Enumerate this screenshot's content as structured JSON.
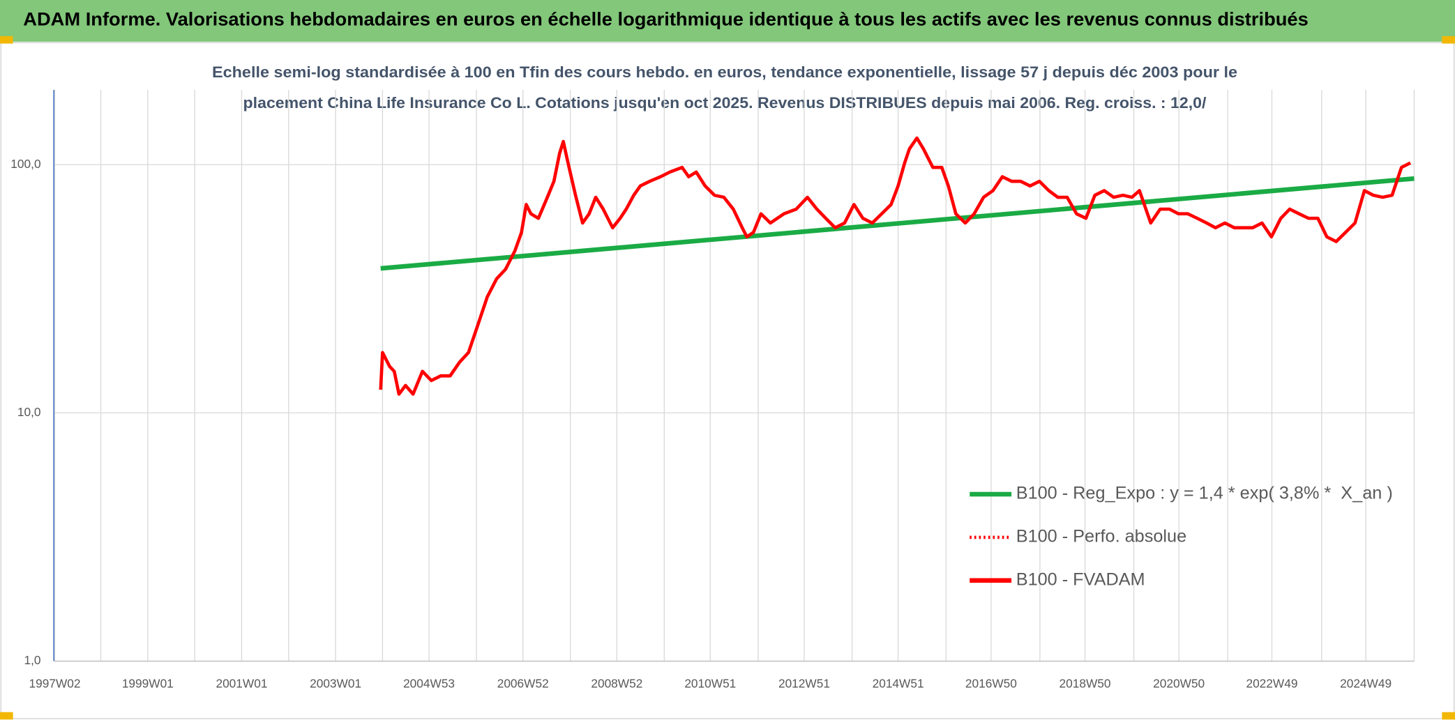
{
  "chart_data": {
    "type": "line",
    "title": "ADAM Informe. Valorisations hebdomadaires en euros en échelle logarithmique identique à tous les actifs avec les revenus connus distribués",
    "subtitle": [
      "Echelle semi-log standardisée à 100 en Tfin des cours hebdo. en euros, tendance exponentielle, lissage 57 j depuis déc 2003 pour le",
      "placement China Life Insurance Co L. Cotations jusqu'en oct 2025. Revenus DISTRIBUES depuis mai 2006. Reg. croiss. : 12,0/"
    ],
    "log_scale": true,
    "grid": true,
    "legend": "right",
    "xlim": [
      1997,
      2025.97
    ],
    "xticks": [
      {
        "value": 1997.02,
        "label": "1997W02"
      },
      {
        "value": 1999.0,
        "label": "1999W01"
      },
      {
        "value": 2001.0,
        "label": "2001W01"
      },
      {
        "value": 2003.0,
        "label": "2003W01"
      },
      {
        "value": 2004.99,
        "label": "2004W53"
      },
      {
        "value": 2006.99,
        "label": "2006W52"
      },
      {
        "value": 2008.99,
        "label": "2008W52"
      },
      {
        "value": 2010.98,
        "label": "2010W51"
      },
      {
        "value": 2012.98,
        "label": "2012W51"
      },
      {
        "value": 2014.98,
        "label": "2014W51"
      },
      {
        "value": 2016.96,
        "label": "2016W50"
      },
      {
        "value": 2018.96,
        "label": "2018W50"
      },
      {
        "value": 2020.96,
        "label": "2020W50"
      },
      {
        "value": 2022.94,
        "label": "2022W49"
      },
      {
        "value": 2024.94,
        "label": "2024W49"
      }
    ],
    "xminor": [
      1998,
      2000,
      2002,
      2004,
      2006,
      2008,
      2010,
      2012,
      2014,
      2016,
      2018,
      2020,
      2022,
      2024,
      2025.97
    ],
    "ylim": [
      1,
      200
    ],
    "yticks": [
      {
        "value": 1,
        "label": "1,0"
      },
      {
        "value": 10,
        "label": "10,0"
      },
      {
        "value": 100,
        "label": "100,0"
      }
    ],
    "series": [
      {
        "name": "B100 - Reg_Expo : y = 1,4 * exp( 3,8% *  X_an )",
        "color": "#1aab45",
        "style": "solid",
        "x": [
          2003.96,
          2025.97
        ],
        "values": [
          38.2,
          87.9
        ]
      },
      {
        "name": "B100 - Perfo. absolue",
        "color": "#ff0000",
        "style": "dotted",
        "x": [],
        "values": []
      },
      {
        "name": "B100 - FVADAM",
        "color": "#ff0000",
        "style": "solid",
        "x": [
          2003.96,
          2004.0,
          2004.15,
          2004.25,
          2004.35,
          2004.49,
          2004.65,
          2004.85,
          2005.04,
          2005.24,
          2005.44,
          2005.64,
          2005.83,
          2006.03,
          2006.23,
          2006.43,
          2006.62,
          2006.82,
          2006.96,
          2007.06,
          2007.16,
          2007.32,
          2007.51,
          2007.65,
          2007.77,
          2007.85,
          2007.95,
          2008.11,
          2008.26,
          2008.4,
          2008.54,
          2008.7,
          2008.9,
          2009.06,
          2009.19,
          2009.35,
          2009.49,
          2009.69,
          2009.92,
          2010.12,
          2010.38,
          2010.52,
          2010.68,
          2010.87,
          2011.07,
          2011.27,
          2011.47,
          2011.66,
          2011.76,
          2011.9,
          2012.06,
          2012.26,
          2012.55,
          2012.81,
          2013.05,
          2013.25,
          2013.44,
          2013.64,
          2013.84,
          2014.04,
          2014.23,
          2014.43,
          2014.63,
          2014.83,
          2014.98,
          2015.12,
          2015.22,
          2015.38,
          2015.52,
          2015.72,
          2015.91,
          2016.05,
          2016.21,
          2016.41,
          2016.6,
          2016.8,
          2017.0,
          2017.2,
          2017.4,
          2017.59,
          2017.79,
          2017.99,
          2018.19,
          2018.38,
          2018.58,
          2018.78,
          2018.98,
          2019.17,
          2019.37,
          2019.57,
          2019.77,
          2019.96,
          2020.12,
          2020.36,
          2020.56,
          2020.76,
          2020.95,
          2021.15,
          2021.35,
          2021.55,
          2021.74,
          2021.94,
          2022.14,
          2022.34,
          2022.53,
          2022.73,
          2022.93,
          2023.13,
          2023.32,
          2023.52,
          2023.72,
          2023.92,
          2024.11,
          2024.31,
          2024.51,
          2024.71,
          2024.91,
          2025.1,
          2025.3,
          2025.5,
          2025.7,
          2025.89
        ],
        "values": [
          12.4,
          17.5,
          15.4,
          14.7,
          11.9,
          12.9,
          11.9,
          14.7,
          13.5,
          14.1,
          14.1,
          16.0,
          17.5,
          22.6,
          29.3,
          34.7,
          37.9,
          45.0,
          53.4,
          69.1,
          63.4,
          60.8,
          73.9,
          85.7,
          110.9,
          124,
          101.7,
          75.3,
          58.2,
          63.4,
          73.9,
          66.2,
          55.7,
          60.8,
          66.2,
          75.3,
          82.1,
          85.7,
          89.4,
          93.4,
          97.5,
          89.4,
          93.4,
          82.1,
          75.3,
          73.9,
          66.2,
          55.7,
          51.2,
          53.4,
          63.4,
          58.2,
          63.4,
          66.2,
          73.9,
          66.2,
          60.8,
          55.7,
          58.2,
          69.1,
          60.8,
          58.2,
          63.4,
          69.1,
          82.1,
          101.7,
          115.7,
          128,
          115.7,
          97.5,
          97.5,
          82.1,
          63.4,
          58.2,
          63.4,
          73.9,
          78.6,
          89.4,
          85.7,
          85.7,
          82.1,
          85.7,
          78.6,
          73.9,
          73.9,
          63.4,
          60.8,
          75.3,
          78.6,
          73.9,
          75.3,
          73.9,
          78.6,
          58.2,
          66.2,
          66.2,
          63.4,
          63.4,
          60.8,
          58.2,
          55.7,
          58.2,
          55.7,
          55.7,
          55.7,
          58.2,
          51.2,
          60.8,
          66.2,
          63.4,
          60.8,
          60.8,
          51.2,
          49.0,
          53.4,
          58.2,
          78.6,
          75.3,
          73.9,
          75.3,
          97.5,
          101.7
        ]
      }
    ]
  }
}
